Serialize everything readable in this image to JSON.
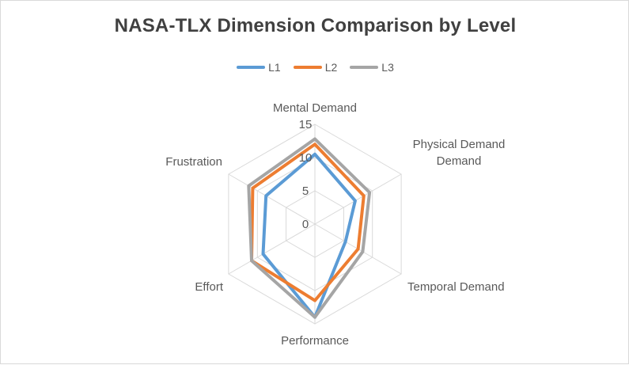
{
  "chart_data": {
    "type": "radar",
    "title": "NASA-TLX Dimension Comparison by Level",
    "axes": [
      "Mental Demand",
      "Physical Demand Demand",
      "Temporal Demand",
      "Performance",
      "Effort",
      "Frustration"
    ],
    "axis_label_lines": [
      [
        "Mental Demand"
      ],
      [
        "Physical Demand",
        "Demand"
      ],
      [
        "Temporal Demand"
      ],
      [
        "Performance"
      ],
      [
        "Effort"
      ],
      [
        "Frustration"
      ]
    ],
    "rlim": [
      0,
      15
    ],
    "ticks": [
      0,
      5,
      10,
      15
    ],
    "tick_labels": [
      "0",
      "5",
      "10",
      "15"
    ],
    "grid": true,
    "legend_position": "top",
    "series": [
      {
        "name": "L1",
        "color": "#5b9bd5",
        "values": [
          10.5,
          7.0,
          5.3,
          14.0,
          9.0,
          8.5
        ]
      },
      {
        "name": "L2",
        "color": "#ed7d31",
        "values": [
          12.0,
          8.5,
          7.5,
          11.5,
          11.0,
          10.8
        ]
      },
      {
        "name": "L3",
        "color": "#a5a5a5",
        "values": [
          12.8,
          9.5,
          8.3,
          14.0,
          11.0,
          11.5
        ]
      }
    ]
  }
}
